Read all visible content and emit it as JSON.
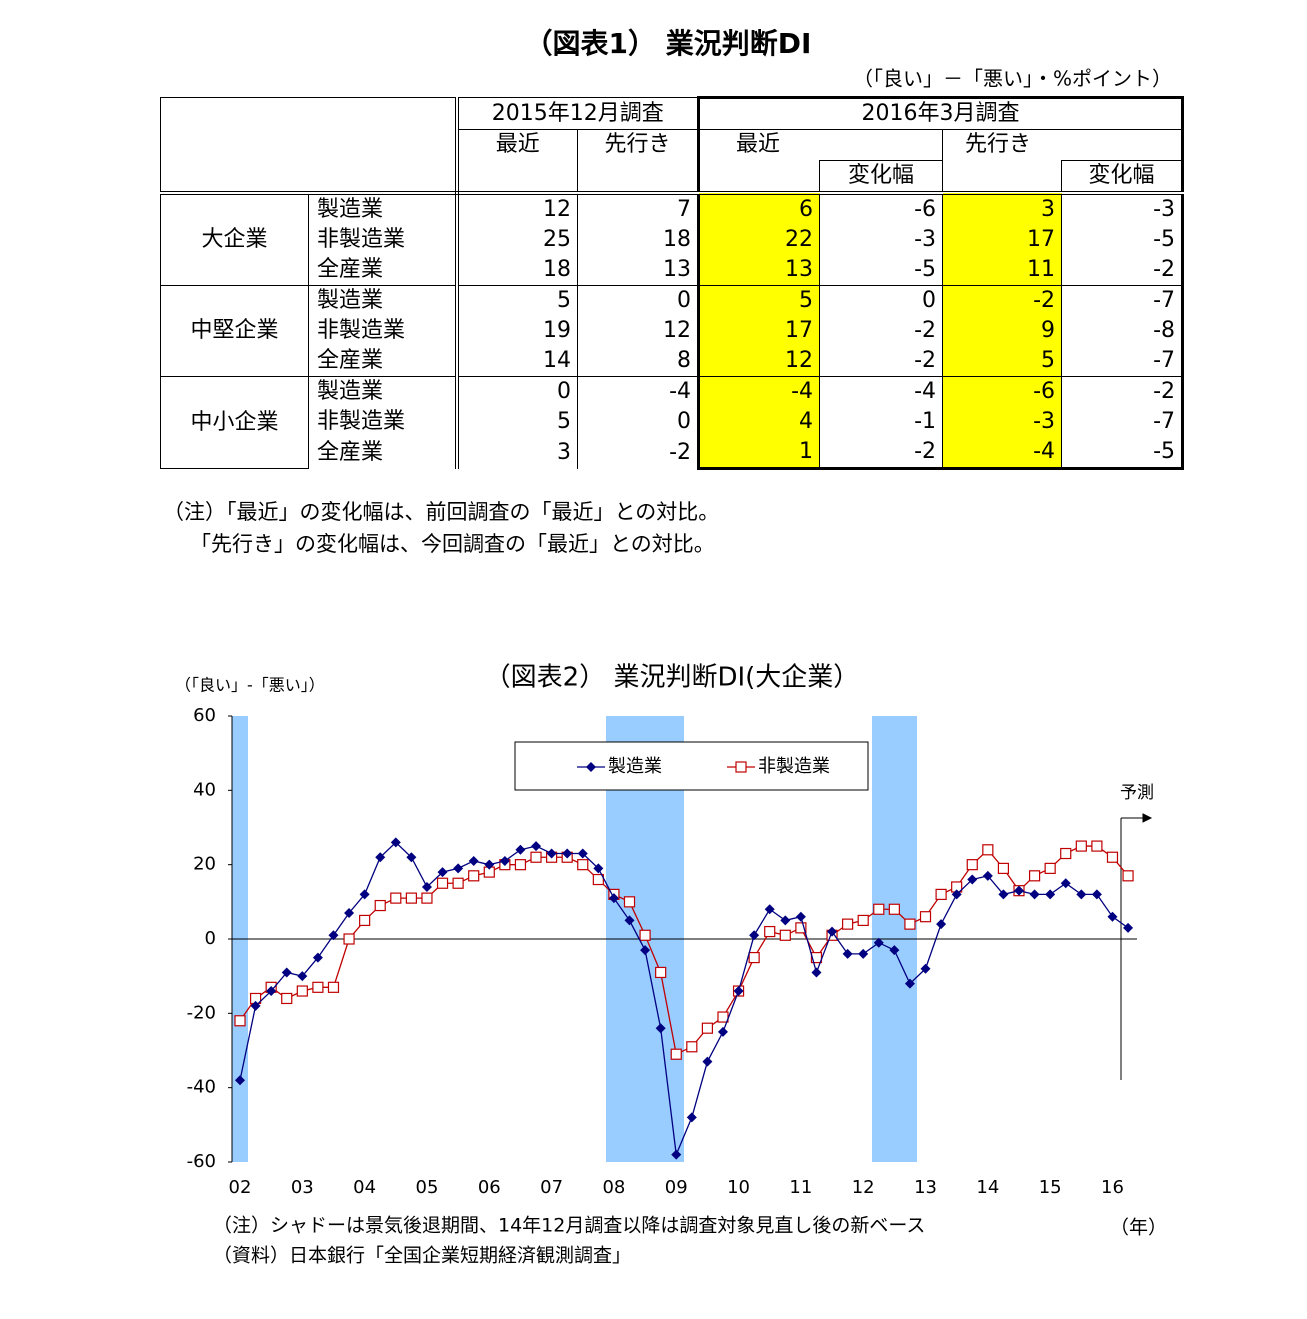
{
  "table": {
    "title": "（図表1） 業況判断DI",
    "unit": "（「良い」－「悪い」・%ポイント）",
    "header": [
      "2015年12月調査",
      "2016年3月調査",
      "最近",
      "先行き",
      "最近",
      "先行き",
      "変化幅",
      "変化幅"
    ],
    "groups": [
      {
        "name": "大企業",
        "rows": [
          {
            "label": "製造業",
            "values": [
              12,
              7,
              6,
              -6,
              3,
              -3
            ]
          },
          {
            "label": "非製造業",
            "values": [
              25,
              18,
              22,
              -3,
              17,
              -5
            ]
          },
          {
            "label": "全産業",
            "values": [
              18,
              13,
              13,
              -5,
              11,
              -2
            ]
          }
        ]
      },
      {
        "name": "中堅企業",
        "rows": [
          {
            "label": "製造業",
            "values": [
              5,
              0,
              5,
              0,
              -2,
              -7
            ]
          },
          {
            "label": "非製造業",
            "values": [
              19,
              12,
              17,
              -2,
              9,
              -8
            ]
          },
          {
            "label": "全産業",
            "values": [
              14,
              8,
              12,
              -2,
              5,
              -7
            ]
          }
        ]
      },
      {
        "name": "中小企業",
        "rows": [
          {
            "label": "製造業",
            "values": [
              0,
              -4,
              -4,
              -4,
              -6,
              -2
            ]
          },
          {
            "label": "非製造業",
            "values": [
              5,
              0,
              4,
              -1,
              -3,
              -7
            ]
          },
          {
            "label": "全産業",
            "values": [
              3,
              -2,
              1,
              -2,
              -4,
              -5
            ]
          }
        ]
      }
    ],
    "notes": [
      "（注）「最近」の変化幅は、前回調査の「最近」との対比。",
      "「先行き」の変化幅は、今回調査の「最近」との対比。"
    ]
  },
  "chart_data": {
    "type": "line",
    "title": "（図表2） 業況判断DI(大企業）",
    "y_label": "（「良い」-「悪い」）",
    "x_label": "（年）",
    "annotation": "予測",
    "notes": [
      "（注）シャドーは景気後退期間、14年12月調査以降は調査対象見直し後の新ベース",
      "（資料）日本銀行「全国企業短期経済観測調査」"
    ],
    "categories": [
      "02",
      null,
      null,
      null,
      "03",
      null,
      null,
      null,
      "04",
      null,
      null,
      null,
      "05",
      null,
      null,
      null,
      "06",
      null,
      null,
      null,
      "07",
      null,
      null,
      null,
      "08",
      null,
      null,
      null,
      "09",
      null,
      null,
      null,
      "10",
      null,
      null,
      null,
      "11",
      null,
      null,
      null,
      "12",
      null,
      null,
      null,
      "13",
      null,
      null,
      null,
      "14",
      null,
      null,
      null,
      "15",
      null,
      null,
      null,
      "16",
      null
    ],
    "series": [
      {
        "name": "製造業",
        "color": "#000080",
        "marker": "diamond",
        "values": [
          -38,
          -18,
          -14,
          -9,
          -10,
          -5,
          1,
          7,
          12,
          22,
          26,
          22,
          14,
          18,
          19,
          21,
          20,
          21,
          24,
          25,
          23,
          23,
          23,
          19,
          11,
          5,
          -3,
          -24,
          -58,
          -48,
          -33,
          -25,
          -14,
          1,
          8,
          5,
          6,
          -9,
          2,
          -4,
          -4,
          -1,
          -3,
          -12,
          -8,
          4,
          12,
          16,
          17,
          12,
          13,
          12,
          12,
          15,
          12,
          12,
          6,
          3
        ]
      },
      {
        "name": "非製造業",
        "color": "#c00000",
        "marker": "square",
        "values": [
          -22,
          -16,
          -13,
          -16,
          -14,
          -13,
          -13,
          0,
          5,
          9,
          11,
          11,
          11,
          15,
          15,
          17,
          18,
          20,
          20,
          22,
          22,
          22,
          20,
          16,
          12,
          10,
          1,
          -9,
          -31,
          -29,
          -24,
          -21,
          -14,
          -5,
          2,
          1,
          3,
          -5,
          1,
          4,
          5,
          8,
          8,
          4,
          6,
          12,
          14,
          20,
          24,
          19,
          13,
          17,
          19,
          23,
          25,
          25,
          22,
          17
        ]
      }
    ],
    "ylim": [
      -60,
      60
    ],
    "yticks": [
      -60,
      -40,
      -20,
      0,
      20,
      40,
      60
    ],
    "legend": "top"
  }
}
